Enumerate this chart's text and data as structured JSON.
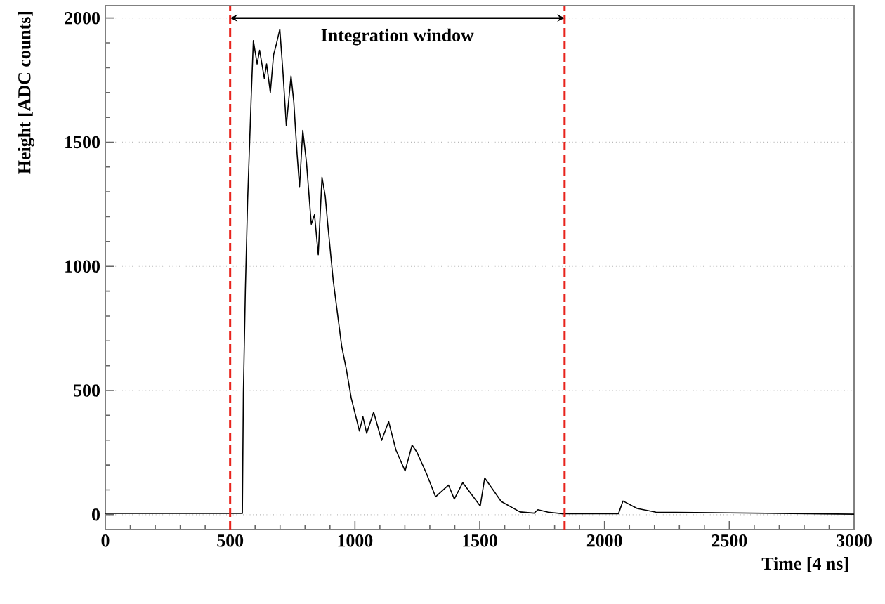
{
  "chart_data": {
    "type": "line",
    "xlabel": "Time [4 ns]",
    "ylabel": "Height [ADC counts]",
    "xlim": [
      0,
      3000
    ],
    "ylim": [
      -60,
      2050
    ],
    "xticks": [
      0,
      500,
      1000,
      1500,
      2000,
      2500,
      3000
    ],
    "yticks": [
      0,
      500,
      1000,
      1500,
      2000
    ],
    "grid": "y",
    "line_style": "solid",
    "marker": "none",
    "series": [
      {
        "color": "#000000",
        "x": [
          0,
          540,
          549,
          553,
          561,
          570,
          585,
          593,
          608,
          618,
          637,
          646,
          661,
          674,
          684,
          699,
          712,
          725,
          744,
          755,
          768,
          778,
          791,
          806,
          825,
          838,
          853,
          868,
          881,
          891,
          913,
          947,
          966,
          985,
          1018,
          1032,
          1047,
          1075,
          1107,
          1135,
          1164,
          1201,
          1229,
          1248,
          1286,
          1323,
          1375,
          1398,
          1432,
          1502,
          1520,
          1586,
          1661,
          1718,
          1733,
          1774,
          1830,
          2056,
          2074,
          2131,
          2206,
          3000
        ],
        "values": [
          5,
          5,
          5,
          489,
          905,
          1265,
          1700,
          1909,
          1815,
          1870,
          1757,
          1815,
          1700,
          1852,
          1890,
          1955,
          1776,
          1567,
          1767,
          1662,
          1454,
          1321,
          1548,
          1416,
          1170,
          1208,
          1047,
          1359,
          1283,
          1170,
          943,
          678,
          583,
          470,
          337,
          394,
          328,
          413,
          299,
          375,
          261,
          176,
          280,
          252,
          167,
          72,
          119,
          63,
          129,
          35,
          148,
          53,
          11,
          6,
          20,
          10,
          4,
          4,
          55,
          25,
          10,
          2
        ]
      }
    ],
    "ref_lines": [
      {
        "axis": "x",
        "value": 500,
        "color": "#e8231c",
        "line_style": "dashed"
      },
      {
        "axis": "x",
        "value": 1840,
        "color": "#e8231c",
        "line_style": "dashed"
      }
    ],
    "annotations": [
      "Integration window"
    ]
  }
}
